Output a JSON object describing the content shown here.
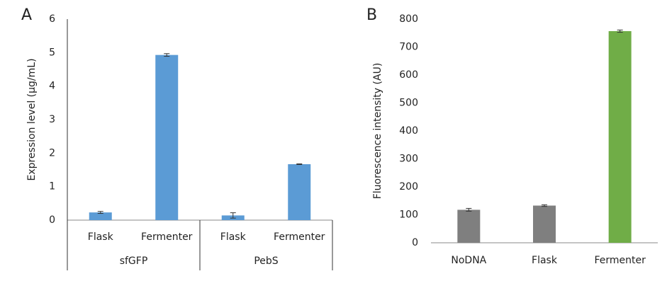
{
  "chart_data": [
    {
      "type": "bar",
      "panel": "A",
      "ylabel": "Expression level (µg/mL)",
      "categories": [
        "Flask",
        "Fermenter",
        "Flask",
        "Fermenter"
      ],
      "groups": [
        "sfGFP",
        "PebS"
      ],
      "values": [
        0.23,
        4.93,
        0.14,
        1.67
      ],
      "errors": [
        0.03,
        0.04,
        0.08,
        0.01
      ],
      "color": "#5b9bd5",
      "ylim": [
        0,
        6
      ],
      "yticks": [
        0,
        1,
        2,
        3,
        4,
        5,
        6
      ]
    },
    {
      "type": "bar",
      "panel": "B",
      "ylabel": "Fluorescence intensity (AU)",
      "categories": [
        "NoDNA",
        "Flask",
        "Fermenter"
      ],
      "values": [
        118,
        133,
        757
      ],
      "errors": [
        5,
        3,
        4
      ],
      "colors": [
        "#7f7f7f",
        "#7f7f7f",
        "#70ad47"
      ],
      "ylim": [
        0,
        800
      ],
      "yticks": [
        0,
        100,
        200,
        300,
        400,
        500,
        600,
        700,
        800
      ]
    }
  ]
}
